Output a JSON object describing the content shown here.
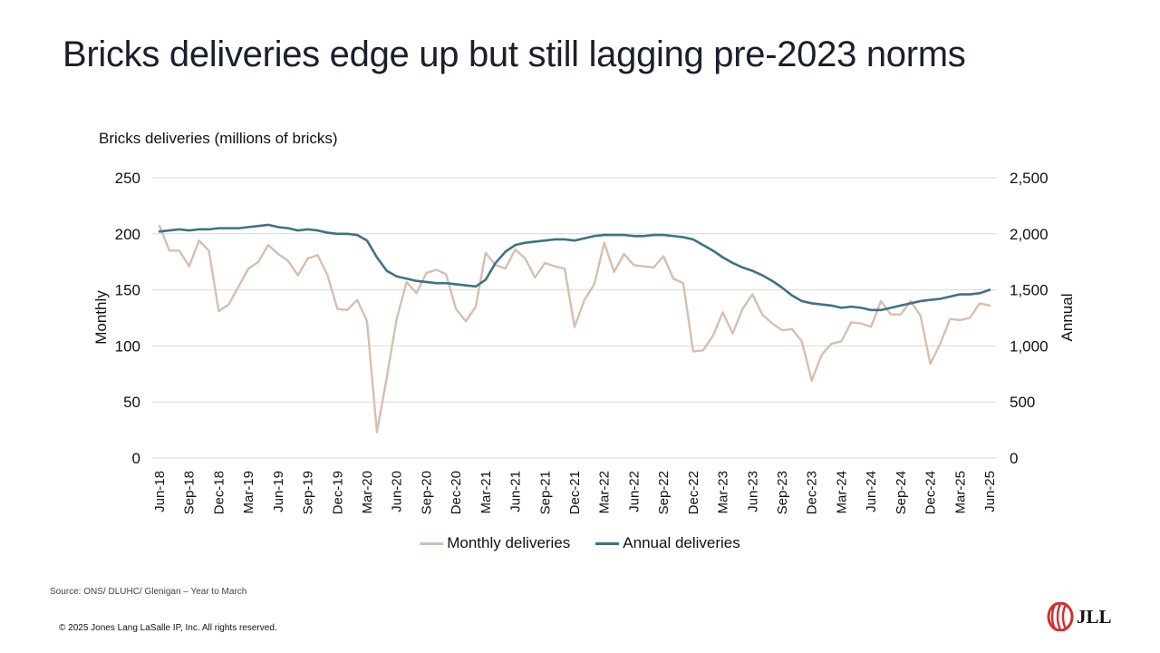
{
  "slide": {
    "title": "Bricks deliveries edge up but still lagging pre-2023 norms",
    "source": "Source: ONS/ DLUHC/ Glenigan – Year to March",
    "copyright": "© 2025 Jones Lang LaSalle IP, Inc. All rights reserved.",
    "logo_text": "JLL"
  },
  "colors": {
    "monthly": "#d6bfb0",
    "annual": "#3f7282",
    "grid": "#d9d9d9",
    "logo": "#d32f2f"
  },
  "chart_data": {
    "type": "line",
    "title": "Bricks deliveries (millions of bricks)",
    "ylabel_left": "Monthly",
    "ylabel_right": "Annual",
    "ylim_left": [
      0,
      250
    ],
    "ylim_right": [
      0,
      2500
    ],
    "yticks_left": [
      "0",
      "50",
      "100",
      "150",
      "200",
      "250"
    ],
    "yticks_right": [
      "0",
      "500",
      "1,000",
      "1,500",
      "2,000",
      "2,500"
    ],
    "grid": true,
    "legend_position": "bottom",
    "x_tick_labels": [
      "Jun-18",
      "Sep-18",
      "Dec-18",
      "Mar-19",
      "Jun-19",
      "Sep-19",
      "Dec-19",
      "Mar-20",
      "Jun-20",
      "Sep-20",
      "Dec-20",
      "Mar-21",
      "Jun-21",
      "Sep-21",
      "Dec-21",
      "Mar-22",
      "Jun-22",
      "Sep-22",
      "Dec-22",
      "Mar-23",
      "Jun-23",
      "Sep-23",
      "Dec-23",
      "Mar-24",
      "Jun-24",
      "Sep-24",
      "Dec-24",
      "Mar-25",
      "Jun-25"
    ],
    "x": [
      "Jun-18",
      "Jul-18",
      "Aug-18",
      "Sep-18",
      "Oct-18",
      "Nov-18",
      "Dec-18",
      "Jan-19",
      "Feb-19",
      "Mar-19",
      "Apr-19",
      "May-19",
      "Jun-19",
      "Jul-19",
      "Aug-19",
      "Sep-19",
      "Oct-19",
      "Nov-19",
      "Dec-19",
      "Jan-20",
      "Feb-20",
      "Mar-20",
      "Apr-20",
      "May-20",
      "Jun-20",
      "Jul-20",
      "Aug-20",
      "Sep-20",
      "Oct-20",
      "Nov-20",
      "Dec-20",
      "Jan-21",
      "Feb-21",
      "Mar-21",
      "Apr-21",
      "May-21",
      "Jun-21",
      "Jul-21",
      "Aug-21",
      "Sep-21",
      "Oct-21",
      "Nov-21",
      "Dec-21",
      "Jan-22",
      "Feb-22",
      "Mar-22",
      "Apr-22",
      "May-22",
      "Jun-22",
      "Jul-22",
      "Aug-22",
      "Sep-22",
      "Oct-22",
      "Nov-22",
      "Dec-22",
      "Jan-23",
      "Feb-23",
      "Mar-23",
      "Apr-23",
      "May-23",
      "Jun-23",
      "Jul-23",
      "Aug-23",
      "Sep-23",
      "Oct-23",
      "Nov-23",
      "Dec-23",
      "Jan-24",
      "Feb-24",
      "Mar-24",
      "Apr-24",
      "May-24",
      "Jun-24",
      "Jul-24",
      "Aug-24",
      "Sep-24",
      "Oct-24",
      "Nov-24",
      "Dec-24",
      "Jan-25",
      "Feb-25",
      "Mar-25",
      "Apr-25",
      "May-25",
      "Jun-25"
    ],
    "series": [
      {
        "name": "Monthly deliveries",
        "axis": "left",
        "values": [
          207,
          185,
          185,
          171,
          194,
          185,
          131,
          137,
          153,
          169,
          175,
          190,
          182,
          176,
          163,
          178,
          181,
          163,
          133,
          132,
          141,
          122,
          23,
          72,
          124,
          157,
          147,
          165,
          168,
          164,
          133,
          122,
          135,
          183,
          172,
          169,
          186,
          178,
          161,
          174,
          171,
          169,
          117,
          141,
          155,
          192,
          166,
          182,
          172,
          171,
          170,
          180,
          160,
          156,
          95,
          96,
          109,
          130,
          111,
          133,
          146,
          128,
          120,
          114,
          115,
          104,
          69,
          92,
          102,
          104,
          121,
          120,
          117,
          140,
          128,
          128,
          140,
          127,
          84,
          102,
          124,
          123,
          125,
          138,
          136
        ],
        "color": "#d6bfb0"
      },
      {
        "name": "Annual deliveries",
        "axis": "right",
        "values": [
          2020,
          2030,
          2040,
          2030,
          2040,
          2040,
          2050,
          2050,
          2050,
          2060,
          2070,
          2080,
          2060,
          2050,
          2030,
          2040,
          2030,
          2010,
          2000,
          2000,
          1990,
          1940,
          1790,
          1670,
          1620,
          1600,
          1580,
          1570,
          1560,
          1560,
          1550,
          1540,
          1530,
          1590,
          1740,
          1840,
          1900,
          1920,
          1930,
          1940,
          1950,
          1950,
          1940,
          1960,
          1980,
          1990,
          1990,
          1990,
          1980,
          1980,
          1990,
          1990,
          1980,
          1970,
          1950,
          1900,
          1850,
          1790,
          1740,
          1700,
          1670,
          1630,
          1580,
          1520,
          1450,
          1400,
          1380,
          1370,
          1360,
          1340,
          1350,
          1340,
          1320,
          1320,
          1340,
          1360,
          1380,
          1400,
          1410,
          1420,
          1440,
          1460,
          1460,
          1470,
          1500
        ],
        "color": "#3f7282"
      }
    ]
  }
}
